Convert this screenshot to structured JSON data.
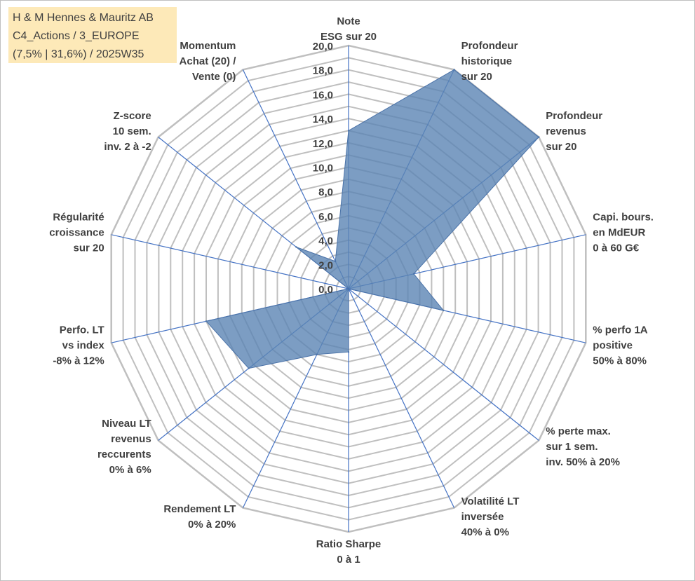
{
  "info_box": {
    "line1": "H & M Hennes & Mauritz AB",
    "line2": "C4_Actions / 3_EUROPE",
    "line3": "(7,5% | 31,6%) / 2025W35"
  },
  "colors": {
    "grid": "#bfbfbf",
    "spokes": "#4472c4",
    "fill": "#5b84b4",
    "fill_opacity": 0.8,
    "stroke": "#4a72a8",
    "text": "#404040",
    "info_box_bg": "#fde9b8"
  },
  "chart_data": {
    "type": "radar",
    "r_range": [
      0,
      20
    ],
    "ticks": [
      "0,0",
      "2,0",
      "4,0",
      "6,0",
      "8,0",
      "10,0",
      "12,0",
      "14,0",
      "16,0",
      "18,0",
      "20,0"
    ],
    "grid_levels": 20,
    "categories": [
      [
        "Note",
        "ESG sur 20"
      ],
      [
        "Profondeur",
        "historique",
        "sur 20"
      ],
      [
        "Profondeur",
        "revenus",
        "sur 20"
      ],
      [
        "Capi. bours.",
        "en MdEUR",
        "0 à 60 G€"
      ],
      [
        "% perfo 1A",
        "positive",
        "50% à 80%"
      ],
      [
        "% perte max.",
        "sur 1 sem.",
        "inv. 50% à 20%"
      ],
      [
        "Volatilité LT",
        "inversée",
        "40% à 0%"
      ],
      [
        "Ratio Sharpe",
        "0 à 1"
      ],
      [
        "Rendement LT",
        "0% à 20%"
      ],
      [
        "Niveau LT",
        "revenus",
        "reccurents",
        "0% à 6%"
      ],
      [
        "Perfo. LT",
        "vs index",
        "-8% à 12%"
      ],
      [
        "Régularité",
        "croissance",
        "sur 20"
      ],
      [
        "Z-score",
        "10 sem.",
        "inv. 2 à -2"
      ],
      [
        "Momentum",
        "Achat (20) /",
        "Vente (0)"
      ]
    ],
    "series": [
      {
        "values": [
          13.0,
          20.0,
          20.0,
          5.5,
          8.0,
          0.0,
          0.0,
          5.2,
          6.0,
          10.5,
          12.0,
          0.0,
          5.5,
          2.5
        ]
      }
    ],
    "grid": true,
    "legend": "none"
  }
}
